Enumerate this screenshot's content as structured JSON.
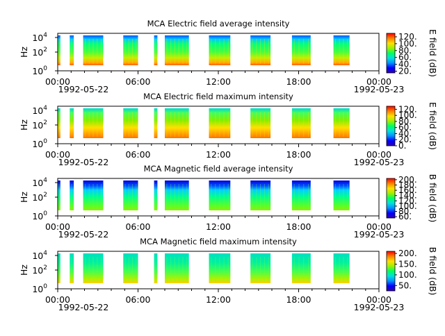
{
  "figure": {
    "x_ticks": [
      "00:00",
      "06:00",
      "12:00",
      "18:00",
      "00:00"
    ],
    "x_ticks_hours": [
      0,
      6,
      12,
      18,
      24
    ],
    "date_start": "1992-05-22",
    "date_end": "1992-05-23"
  },
  "colormap": [
    "#3000b0",
    "#0000ff",
    "#0090ff",
    "#00e0e0",
    "#00ff60",
    "#a0f000",
    "#ffe000",
    "#ff8000",
    "#ff0000"
  ],
  "chart_data": [
    {
      "type": "heatmap",
      "title": "MCA  Electric field average intensity",
      "ylabel": "Hz",
      "y_scale": "log",
      "y_ticks": [
        "10",
        "10",
        "10"
      ],
      "y_tick_exponents": [
        "0",
        "2",
        "4"
      ],
      "xlim_hours": [
        0,
        24
      ],
      "colorbar": {
        "label": "E field (dB)",
        "ticks": [
          "20.",
          "40.",
          "60.",
          "80.",
          "100.",
          "120."
        ],
        "range": [
          15,
          130
        ]
      },
      "data_intervals_hours": [
        [
          0,
          0.2
        ],
        [
          0.9,
          1.2
        ],
        [
          1.9,
          3.4
        ],
        [
          4.9,
          6.0
        ],
        [
          7.2,
          7.45
        ],
        [
          8.0,
          9.8
        ],
        [
          11.3,
          12.9
        ],
        [
          14.4,
          15.9
        ],
        [
          17.5,
          18.9
        ],
        [
          20.6,
          21.8
        ]
      ]
    },
    {
      "type": "heatmap",
      "title": "MCA  Electric field maximum intensity",
      "ylabel": "Hz",
      "y_scale": "log",
      "y_ticks": [
        "10",
        "10",
        "10"
      ],
      "y_tick_exponents": [
        "0",
        "2",
        "4"
      ],
      "xlim_hours": [
        0,
        24
      ],
      "colorbar": {
        "label": "E field (dB)",
        "ticks": [
          "0.",
          "20.",
          "40.",
          "60.",
          "80.",
          "100.",
          "120."
        ],
        "range": [
          0,
          130
        ]
      },
      "data_intervals_hours": [
        [
          0,
          0.2
        ],
        [
          0.9,
          1.2
        ],
        [
          1.9,
          3.4
        ],
        [
          4.9,
          6.0
        ],
        [
          7.2,
          7.45
        ],
        [
          8.0,
          9.8
        ],
        [
          11.3,
          12.9
        ],
        [
          14.4,
          15.9
        ],
        [
          17.5,
          18.9
        ],
        [
          20.6,
          21.8
        ]
      ]
    },
    {
      "type": "heatmap",
      "title": "MCA  Magnetic field average intensity",
      "ylabel": "Hz",
      "y_scale": "log",
      "y_ticks": [
        "10",
        "10",
        "10"
      ],
      "y_tick_exponents": [
        "0",
        "2",
        "4"
      ],
      "xlim_hours": [
        0,
        24
      ],
      "colorbar": {
        "label": "B field (dB)",
        "ticks": [
          "60.",
          "80.",
          "100.",
          "120.",
          "140.",
          "160.",
          "180.",
          "200."
        ],
        "range": [
          55,
          205
        ]
      },
      "data_intervals_hours": [
        [
          0,
          0.2
        ],
        [
          0.9,
          1.2
        ],
        [
          1.9,
          3.4
        ],
        [
          4.9,
          6.0
        ],
        [
          7.2,
          7.45
        ],
        [
          8.0,
          9.8
        ],
        [
          11.3,
          12.9
        ],
        [
          14.4,
          15.9
        ],
        [
          17.5,
          18.9
        ],
        [
          20.6,
          21.8
        ]
      ]
    },
    {
      "type": "heatmap",
      "title": "MCA  Magnetic field maximum intensity",
      "ylabel": "Hz",
      "y_scale": "log",
      "y_ticks": [
        "10",
        "10",
        "10"
      ],
      "y_tick_exponents": [
        "0",
        "2",
        "4"
      ],
      "xlim_hours": [
        0,
        24
      ],
      "colorbar": {
        "label": "B field (dB)",
        "ticks": [
          "50.",
          "100.",
          "150.",
          "200."
        ],
        "range": [
          25,
          210
        ]
      },
      "data_intervals_hours": [
        [
          0,
          0.2
        ],
        [
          0.9,
          1.2
        ],
        [
          1.9,
          3.4
        ],
        [
          4.9,
          6.0
        ],
        [
          7.2,
          7.45
        ],
        [
          8.0,
          9.8
        ],
        [
          11.3,
          12.9
        ],
        [
          14.4,
          15.9
        ],
        [
          17.5,
          18.9
        ],
        [
          20.6,
          21.8
        ]
      ]
    }
  ]
}
